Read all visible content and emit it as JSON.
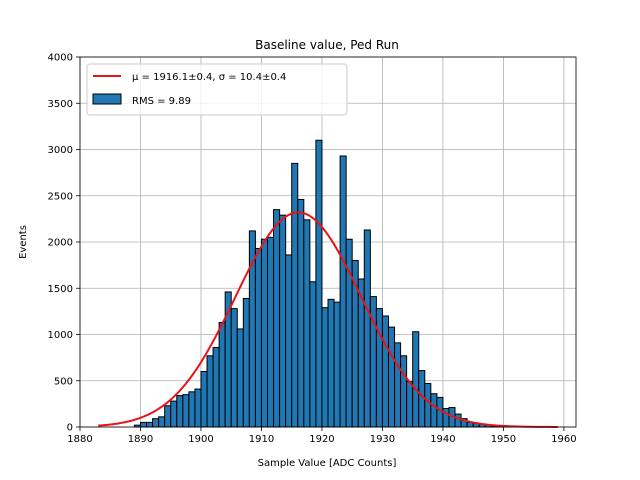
{
  "chart_data": {
    "type": "bar",
    "title": "Baseline value, Ped Run",
    "xlabel": "Sample Value [ADC Counts]",
    "ylabel": "Events",
    "xlim": [
      1880,
      1962
    ],
    "ylim": [
      0,
      4000
    ],
    "xticks": [
      1880,
      1890,
      1900,
      1910,
      1920,
      1930,
      1940,
      1950,
      1960
    ],
    "yticks": [
      0,
      500,
      1000,
      1500,
      2000,
      2500,
      3000,
      3500,
      4000
    ],
    "grid": true,
    "legend_position": "top-left",
    "bin_start": 1883,
    "bin_width": 1,
    "values": [
      0,
      0,
      0,
      0,
      0,
      0,
      20,
      50,
      50,
      90,
      110,
      230,
      280,
      340,
      350,
      380,
      410,
      600,
      770,
      860,
      1130,
      1460,
      1280,
      1060,
      1390,
      2120,
      1930,
      2030,
      2050,
      2350,
      2290,
      1860,
      2850,
      2460,
      2240,
      1570,
      3100,
      1290,
      1380,
      1350,
      2930,
      2030,
      1800,
      1600,
      2130,
      1410,
      1280,
      1200,
      1080,
      910,
      770,
      490,
      1030,
      610,
      470,
      360,
      320,
      200,
      210,
      140,
      90,
      50,
      40,
      30,
      20,
      10,
      5,
      3,
      2,
      0,
      0,
      0,
      0,
      0,
      0,
      0,
      0
    ],
    "series": [
      {
        "name": "RMS = 9.89",
        "kind": "histogram",
        "color": "#1f77b4"
      },
      {
        "name": "fit",
        "kind": "gaussian",
        "color": "#e8141a",
        "mu": 1916.1,
        "sigma": 10.4,
        "amplitude": 2320,
        "x_range": [
          1883,
          1959
        ]
      }
    ],
    "legend": [
      {
        "label": "μ = 1916.1±0.4, σ = 10.4±0.4",
        "kind": "line",
        "color": "#e8141a"
      },
      {
        "label": "RMS = 9.89",
        "kind": "patch",
        "color": "#1f77b4"
      }
    ]
  }
}
